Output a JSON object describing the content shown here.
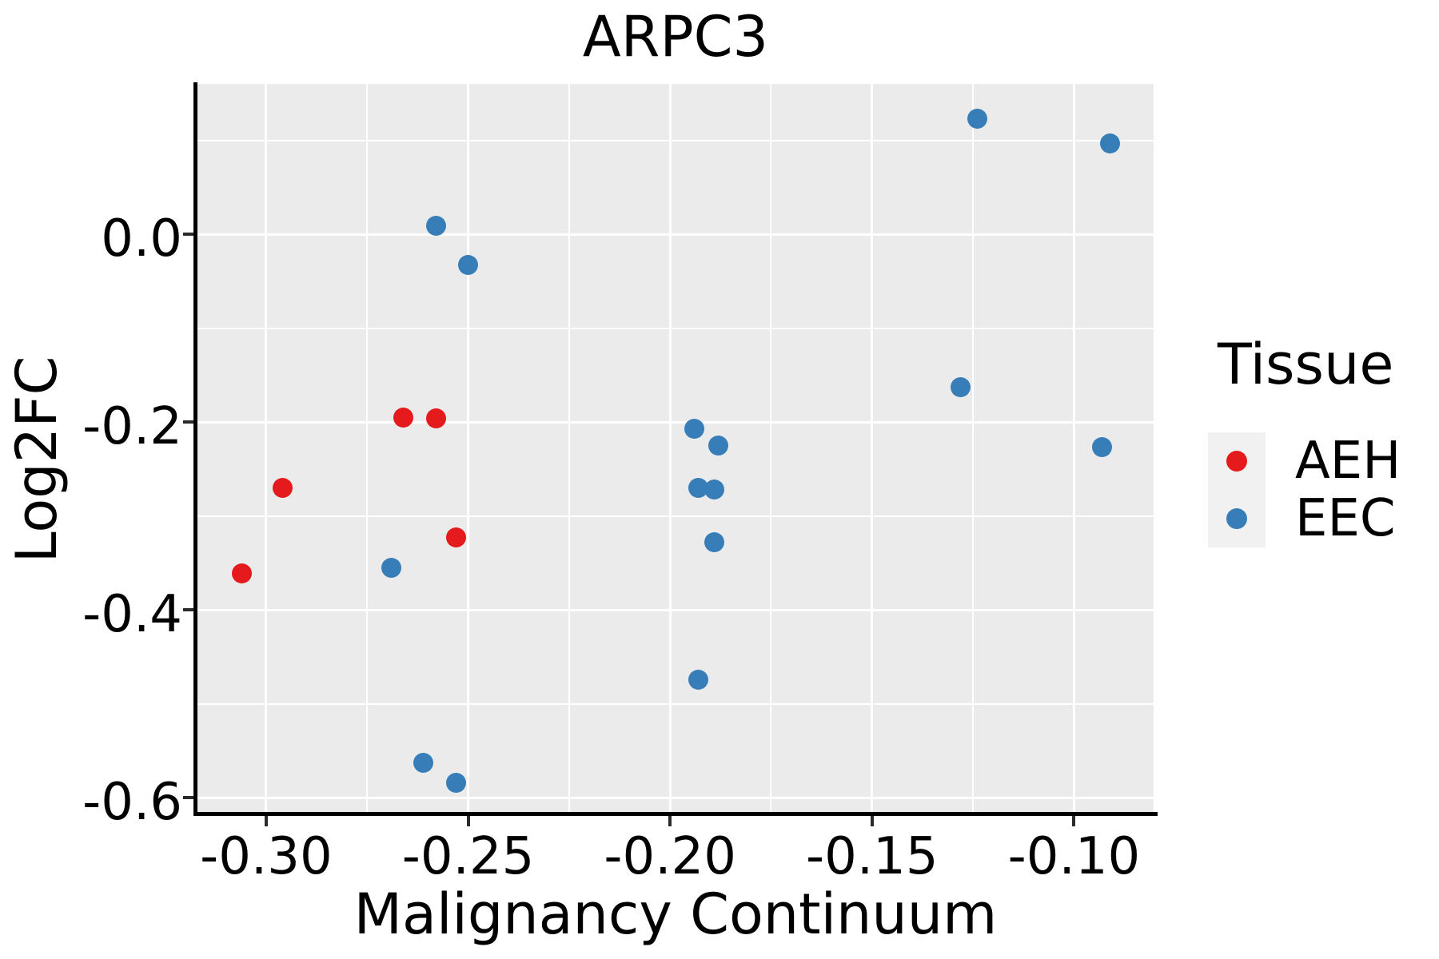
{
  "title": "ARPC3",
  "axes": {
    "x_label": "Malignancy Continuum",
    "y_label": "Log2FC"
  },
  "legend": {
    "title": "Tissue",
    "entries": [
      {
        "label": "AEH",
        "color": "#E41A1C"
      },
      {
        "label": "EEC",
        "color": "#377EB8"
      }
    ]
  },
  "colors": {
    "panel_background": "#EBEBEB",
    "gridline": "#FFFFFF",
    "axis_spine": "#000000",
    "aeh_red": "#E41A1C",
    "eec_blue": "#377EB8",
    "legend_key_background": "#F1F1F1"
  },
  "chart_data": {
    "type": "scatter",
    "title": "ARPC3",
    "xlabel": "Malignancy Continuum",
    "ylabel": "Log2FC",
    "xlim": [
      -0.317,
      -0.0803
    ],
    "ylim": [
      -0.616,
      0.16
    ],
    "x_ticks": [
      -0.3,
      -0.25,
      -0.2,
      -0.15,
      -0.1
    ],
    "x_tick_labels": [
      "-0.30",
      "-0.25",
      "-0.20",
      "-0.15",
      "-0.10"
    ],
    "y_ticks": [
      0.0,
      -0.2,
      -0.4,
      -0.6
    ],
    "y_tick_labels": [
      "0.0",
      "-0.2",
      "-0.4",
      "-0.6"
    ],
    "grid": {
      "major": true,
      "minor": true,
      "color": "white",
      "panel": "gray"
    },
    "legend_position": "right",
    "legend_title": "Tissue",
    "series": [
      {
        "name": "AEH",
        "color": "#E41A1C",
        "points": [
          [
            -0.266,
            -0.195
          ],
          [
            -0.258,
            -0.196
          ],
          [
            -0.296,
            -0.27
          ],
          [
            -0.253,
            -0.323
          ],
          [
            -0.306,
            -0.361
          ]
        ]
      },
      {
        "name": "EEC",
        "color": "#377EB8",
        "points": [
          [
            -0.258,
            0.009
          ],
          [
            -0.25,
            -0.033
          ],
          [
            -0.124,
            0.123
          ],
          [
            -0.091,
            0.097
          ],
          [
            -0.128,
            -0.163
          ],
          [
            -0.194,
            -0.207
          ],
          [
            -0.188,
            -0.225
          ],
          [
            -0.093,
            -0.227
          ],
          [
            -0.193,
            -0.27
          ],
          [
            -0.189,
            -0.272
          ],
          [
            -0.189,
            -0.328
          ],
          [
            -0.269,
            -0.355
          ],
          [
            -0.193,
            -0.474
          ],
          [
            -0.261,
            -0.563
          ],
          [
            -0.253,
            -0.584
          ]
        ]
      }
    ]
  }
}
